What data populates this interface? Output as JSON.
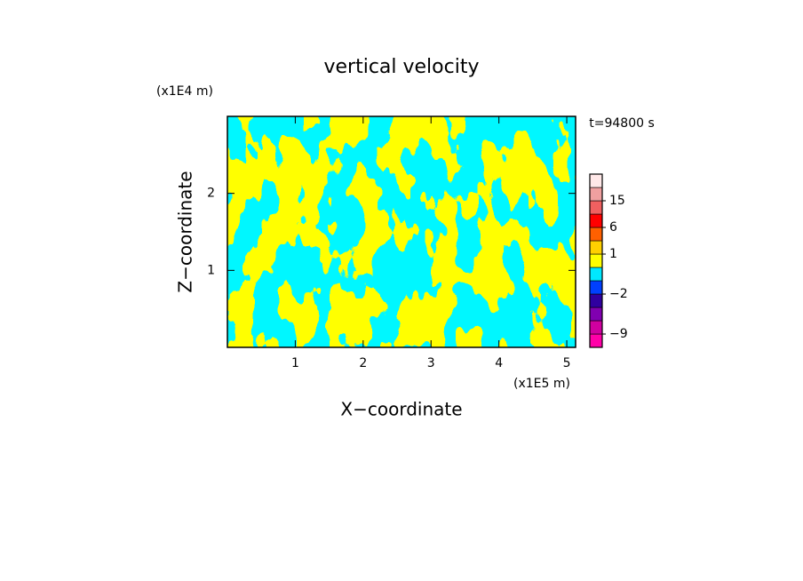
{
  "chart_data": {
    "type": "contour",
    "title": "vertical velocity",
    "x_label": "X−coordinate",
    "y_label": "Z−coordinate",
    "x_unit": "(x1E5 m)",
    "y_unit": "(x1E4 m)",
    "annotation": "t=94800 s",
    "xlim": [
      0,
      5.13
    ],
    "xticks": [
      1,
      2,
      3,
      4,
      5
    ],
    "ylim": [
      0,
      3
    ],
    "yticks": [
      1,
      2
    ],
    "field_colors": [
      "#ffff00",
      "#00eeff"
    ],
    "colorbar": {
      "levels": [
        -15,
        -9,
        -6,
        -4,
        -2,
        -1,
        0,
        1,
        3,
        6,
        10,
        15,
        20,
        30
      ],
      "colors": [
        "#ff00a8",
        "#d000a0",
        "#8000b0",
        "#3000a0",
        "#0040ff",
        "#00e8ff",
        "#ffff00",
        "#ffd000",
        "#ff6000",
        "#ff0000",
        "#f06060",
        "#f0a0a0",
        "#ffe8e8"
      ],
      "ticks": [
        {
          "value": -9,
          "label": "−9"
        },
        {
          "value": -2,
          "label": "−2"
        },
        1,
        6,
        15
      ]
    }
  }
}
